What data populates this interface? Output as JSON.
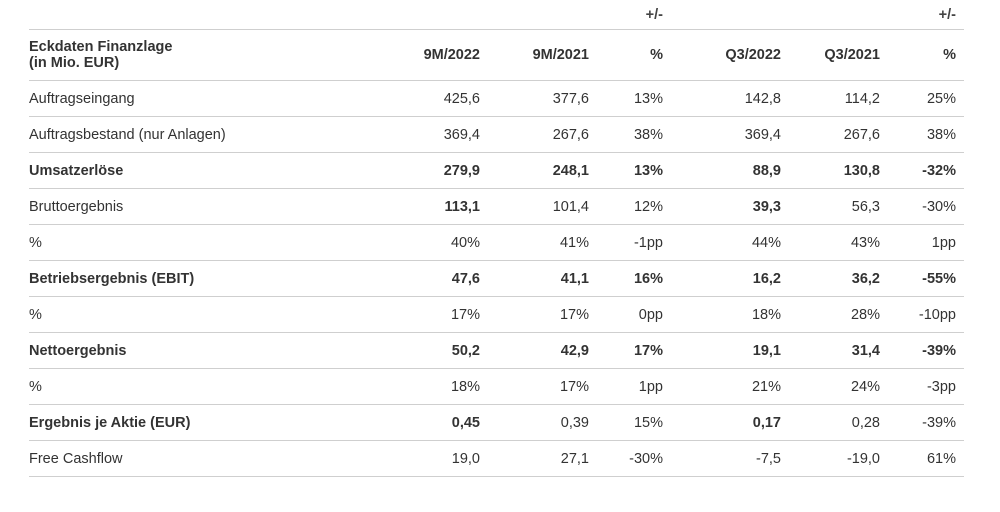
{
  "table": {
    "top_row": [
      "",
      "",
      "",
      "+/-",
      "",
      "",
      "+/-"
    ],
    "header": {
      "title_line1": "Eckdaten Finanzlage",
      "title_line2": "(in Mio. EUR)",
      "columns": [
        "9M/2022",
        "9M/2021",
        "%",
        "Q3/2022",
        "Q3/2021",
        "%"
      ]
    },
    "rows": [
      {
        "label": "Auftragseingang",
        "bold": false,
        "cells": [
          {
            "v": "425,6",
            "b": false
          },
          {
            "v": "377,6",
            "b": false
          },
          {
            "v": "13%",
            "b": false
          },
          {
            "v": "142,8",
            "b": false
          },
          {
            "v": "114,2",
            "b": false
          },
          {
            "v": "25%",
            "b": false
          }
        ]
      },
      {
        "label": "Auftragsbestand (nur Anlagen)",
        "bold": false,
        "cells": [
          {
            "v": "369,4",
            "b": false
          },
          {
            "v": "267,6",
            "b": false
          },
          {
            "v": "38%",
            "b": false
          },
          {
            "v": "369,4",
            "b": false
          },
          {
            "v": "267,6",
            "b": false
          },
          {
            "v": "38%",
            "b": false
          }
        ]
      },
      {
        "label": "Umsatzerlöse",
        "bold": true,
        "cells": [
          {
            "v": "279,9",
            "b": true
          },
          {
            "v": "248,1",
            "b": true
          },
          {
            "v": "13%",
            "b": true
          },
          {
            "v": "88,9",
            "b": true
          },
          {
            "v": "130,8",
            "b": true
          },
          {
            "v": "-32%",
            "b": true
          }
        ]
      },
      {
        "label": "Bruttoergebnis",
        "bold": false,
        "cells": [
          {
            "v": "113,1",
            "b": true
          },
          {
            "v": "101,4",
            "b": false
          },
          {
            "v": "12%",
            "b": false
          },
          {
            "v": "39,3",
            "b": true
          },
          {
            "v": "56,3",
            "b": false
          },
          {
            "v": "-30%",
            "b": false
          }
        ]
      },
      {
        "label": "%",
        "bold": false,
        "cells": [
          {
            "v": "40%",
            "b": false
          },
          {
            "v": "41%",
            "b": false
          },
          {
            "v": "-1pp",
            "b": false
          },
          {
            "v": "44%",
            "b": false
          },
          {
            "v": "43%",
            "b": false
          },
          {
            "v": "1pp",
            "b": false
          }
        ]
      },
      {
        "label": "Betriebsergebnis (EBIT)",
        "bold": true,
        "cells": [
          {
            "v": "47,6",
            "b": true
          },
          {
            "v": "41,1",
            "b": true
          },
          {
            "v": "16%",
            "b": true
          },
          {
            "v": "16,2",
            "b": true
          },
          {
            "v": "36,2",
            "b": true
          },
          {
            "v": "-55%",
            "b": true
          }
        ]
      },
      {
        "label": "%",
        "bold": false,
        "cells": [
          {
            "v": "17%",
            "b": false
          },
          {
            "v": "17%",
            "b": false
          },
          {
            "v": "0pp",
            "b": false
          },
          {
            "v": "18%",
            "b": false
          },
          {
            "v": "28%",
            "b": false
          },
          {
            "v": "-10pp",
            "b": false
          }
        ]
      },
      {
        "label": "Nettoergebnis",
        "bold": true,
        "cells": [
          {
            "v": "50,2",
            "b": true
          },
          {
            "v": "42,9",
            "b": true
          },
          {
            "v": "17%",
            "b": true
          },
          {
            "v": "19,1",
            "b": true
          },
          {
            "v": "31,4",
            "b": true
          },
          {
            "v": "-39%",
            "b": true
          }
        ]
      },
      {
        "label": "%",
        "bold": false,
        "cells": [
          {
            "v": "18%",
            "b": false
          },
          {
            "v": "17%",
            "b": false
          },
          {
            "v": "1pp",
            "b": false
          },
          {
            "v": "21%",
            "b": false
          },
          {
            "v": "24%",
            "b": false
          },
          {
            "v": "-3pp",
            "b": false
          }
        ]
      },
      {
        "label": "Ergebnis je Aktie (EUR)",
        "bold": false,
        "label_bold": true,
        "cells": [
          {
            "v": "0,45",
            "b": true
          },
          {
            "v": "0,39",
            "b": false
          },
          {
            "v": "15%",
            "b": false
          },
          {
            "v": "0,17",
            "b": true
          },
          {
            "v": "0,28",
            "b": false
          },
          {
            "v": "-39%",
            "b": false
          }
        ]
      },
      {
        "label": "Free Cashflow",
        "bold": false,
        "cells": [
          {
            "v": "19,0",
            "b": false
          },
          {
            "v": "27,1",
            "b": false
          },
          {
            "v": "-30%",
            "b": false
          },
          {
            "v": "-7,5",
            "b": false
          },
          {
            "v": "-19,0",
            "b": false
          },
          {
            "v": "61%",
            "b": false
          }
        ]
      }
    ]
  }
}
